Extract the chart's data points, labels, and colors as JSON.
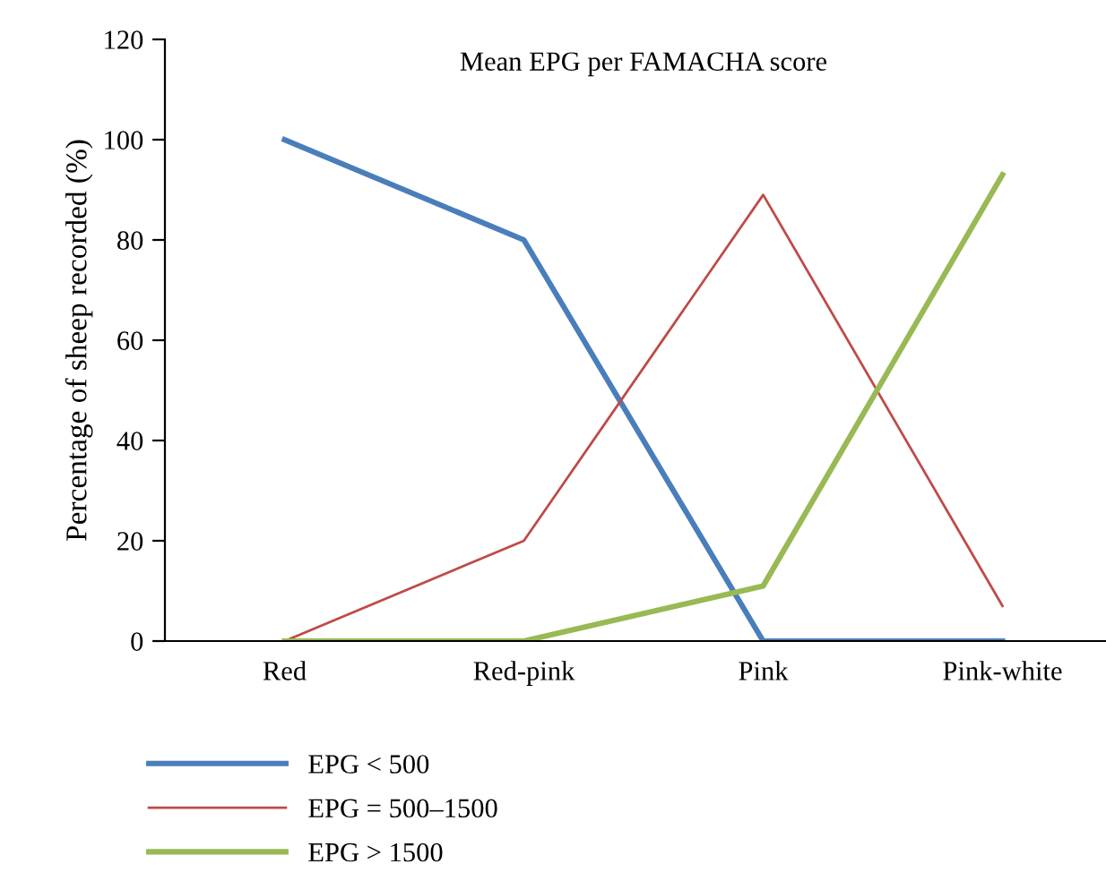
{
  "chart_data": {
    "type": "line",
    "title": "Mean EPG per FAMACHA score",
    "ylabel": "Percentage of sheep recorded (%)",
    "categories": [
      "Red",
      "Red-pink",
      "Pink",
      "Pink-white"
    ],
    "series": [
      {
        "name": "EPG < 500",
        "color": "#4a7ebb",
        "values": [
          100,
          80,
          0,
          0
        ]
      },
      {
        "name": "EPG = 500–1500",
        "color": "#be4b48",
        "values": [
          0,
          20,
          89,
          7
        ]
      },
      {
        "name": "EPG > 1500",
        "color": "#98b954",
        "values": [
          0,
          0,
          11,
          93
        ]
      }
    ],
    "ylim": [
      0,
      120
    ],
    "yticks": [
      0,
      20,
      40,
      60,
      80,
      100,
      120
    ],
    "grid": false,
    "legend": "bottom",
    "marker": "none",
    "line_style": "solid"
  }
}
